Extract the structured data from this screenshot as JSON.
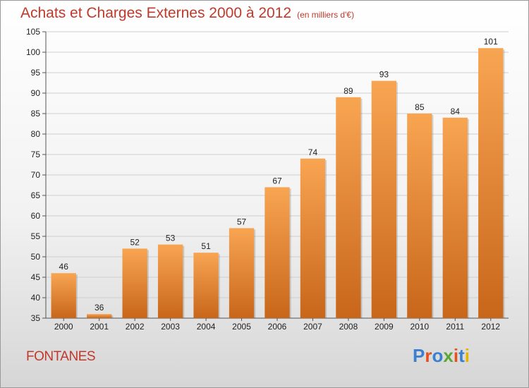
{
  "header": {
    "title": "Achats et Charges Externes 2000 à 2012",
    "subtitle": "(en milliers d'€)"
  },
  "footer": {
    "commune": "FONTANES",
    "logo_text": "Proxiti",
    "logo_colors": [
      "#3a7fd0",
      "#e6501e",
      "#3a7fd0",
      "#5aa832",
      "#e6501e",
      "#3a7fd0",
      "#e8b400"
    ]
  },
  "colors": {
    "title": "#c0392b",
    "bar_top": "#f8a552",
    "bar_bottom": "#c8661a",
    "grid": "#cfcfcf"
  },
  "chart_data": {
    "type": "bar",
    "categories": [
      "2000",
      "2001",
      "2002",
      "2003",
      "2004",
      "2005",
      "2006",
      "2007",
      "2008",
      "2009",
      "2010",
      "2011",
      "2012"
    ],
    "values": [
      46,
      36,
      52,
      53,
      51,
      57,
      67,
      74,
      89,
      93,
      85,
      84,
      101
    ],
    "title": "Achats et Charges Externes 2000 à 2012",
    "ylim": [
      35,
      105
    ],
    "yticks": [
      35,
      40,
      45,
      50,
      55,
      60,
      65,
      70,
      75,
      80,
      85,
      90,
      95,
      100,
      105
    ],
    "grid": true,
    "legend": "none"
  }
}
